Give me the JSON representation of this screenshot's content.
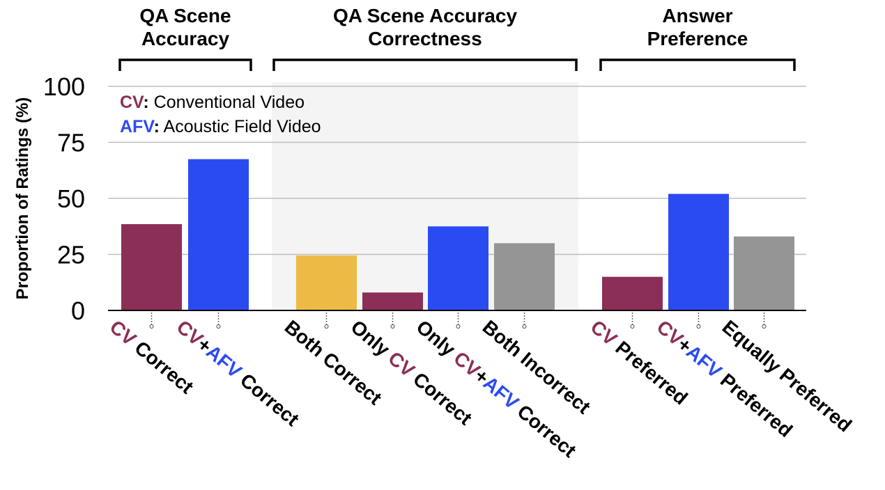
{
  "chart_data": {
    "type": "bar",
    "ylabel": "Proportion of Ratings (%)",
    "ylim": [
      0,
      100
    ],
    "yticks": [
      0,
      25,
      50,
      75,
      100
    ],
    "grid": true,
    "legend": {
      "placement": "top-left",
      "entries": [
        {
          "abbr": "CV",
          "sep": ":",
          "text": " Conventional Video",
          "color": "#8B2F57"
        },
        {
          "abbr": "AFV",
          "sep": ":",
          "text": " Acoustic Field Video",
          "color": "#2B4BF2"
        }
      ]
    },
    "groups": [
      {
        "title": [
          "QA Scene",
          "Accuracy"
        ],
        "shaded": false,
        "bars": [
          0,
          1
        ]
      },
      {
        "title": [
          "QA Scene Accuracy",
          "Correctness"
        ],
        "shaded": true,
        "bars": [
          2,
          3,
          4,
          5
        ]
      },
      {
        "title": [
          "Answer",
          "Preference"
        ],
        "shaded": false,
        "bars": [
          6,
          7,
          8
        ]
      }
    ],
    "categories": [
      [
        {
          "t": "CV",
          "c": "#8B2F57"
        },
        {
          "t": " Correct",
          "c": "#000"
        }
      ],
      [
        {
          "t": "CV",
          "c": "#8B2F57"
        },
        {
          "t": "+",
          "c": "#000"
        },
        {
          "t": "AFV",
          "c": "#2B4BF2"
        },
        {
          "t": " Correct",
          "c": "#000"
        }
      ],
      [
        {
          "t": "Both Correct",
          "c": "#000"
        }
      ],
      [
        {
          "t": "Only ",
          "c": "#000"
        },
        {
          "t": "CV",
          "c": "#8B2F57"
        },
        {
          "t": " Correct",
          "c": "#000"
        }
      ],
      [
        {
          "t": "Only ",
          "c": "#000"
        },
        {
          "t": "CV",
          "c": "#8B2F57"
        },
        {
          "t": "+",
          "c": "#000"
        },
        {
          "t": "AFV",
          "c": "#2B4BF2"
        },
        {
          "t": " Correct",
          "c": "#000"
        }
      ],
      [
        {
          "t": "Both Incorrect",
          "c": "#000"
        }
      ],
      [
        {
          "t": "CV",
          "c": "#8B2F57"
        },
        {
          "t": " Preferred",
          "c": "#000"
        }
      ],
      [
        {
          "t": "CV",
          "c": "#8B2F57"
        },
        {
          "t": "+",
          "c": "#000"
        },
        {
          "t": "AFV",
          "c": "#2B4BF2"
        },
        {
          "t": " Preferred",
          "c": "#000"
        }
      ],
      [
        {
          "t": "Equally Preferred",
          "c": "#000"
        }
      ]
    ],
    "values": [
      38.5,
      67.5,
      24.5,
      8,
      37.5,
      30,
      15,
      52,
      33
    ],
    "colors": [
      "#8B2F57",
      "#2B4BF2",
      "#EDBB45",
      "#8B2F57",
      "#2B4BF2",
      "#959595",
      "#8B2F57",
      "#2B4BF2",
      "#959595"
    ]
  }
}
